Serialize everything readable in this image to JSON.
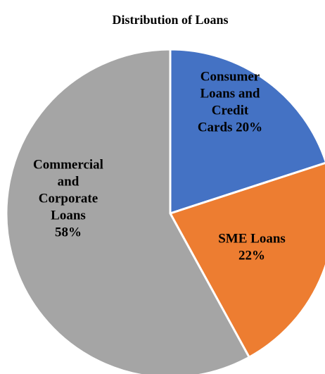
{
  "chart_data": {
    "type": "pie",
    "title": "Distribution of Loans",
    "slices": [
      {
        "name": "Consumer Loans and Credit Cards",
        "value": 20,
        "color": "#4472C4",
        "label_lines": [
          "Consumer",
          "Loans and",
          "Credit",
          "Cards 20%"
        ]
      },
      {
        "name": "SME Loans",
        "value": 22,
        "color": "#ED7D31",
        "label_lines": [
          "SME Loans",
          "22%"
        ]
      },
      {
        "name": "Commercial and Corporate Loans",
        "value": 58,
        "color": "#A5A5A5",
        "label_lines": [
          "Commercial",
          "and",
          "Corporate",
          "Loans",
          "58%"
        ]
      }
    ],
    "start_angle_deg": 0,
    "direction": "clockwise",
    "legend": "none"
  }
}
